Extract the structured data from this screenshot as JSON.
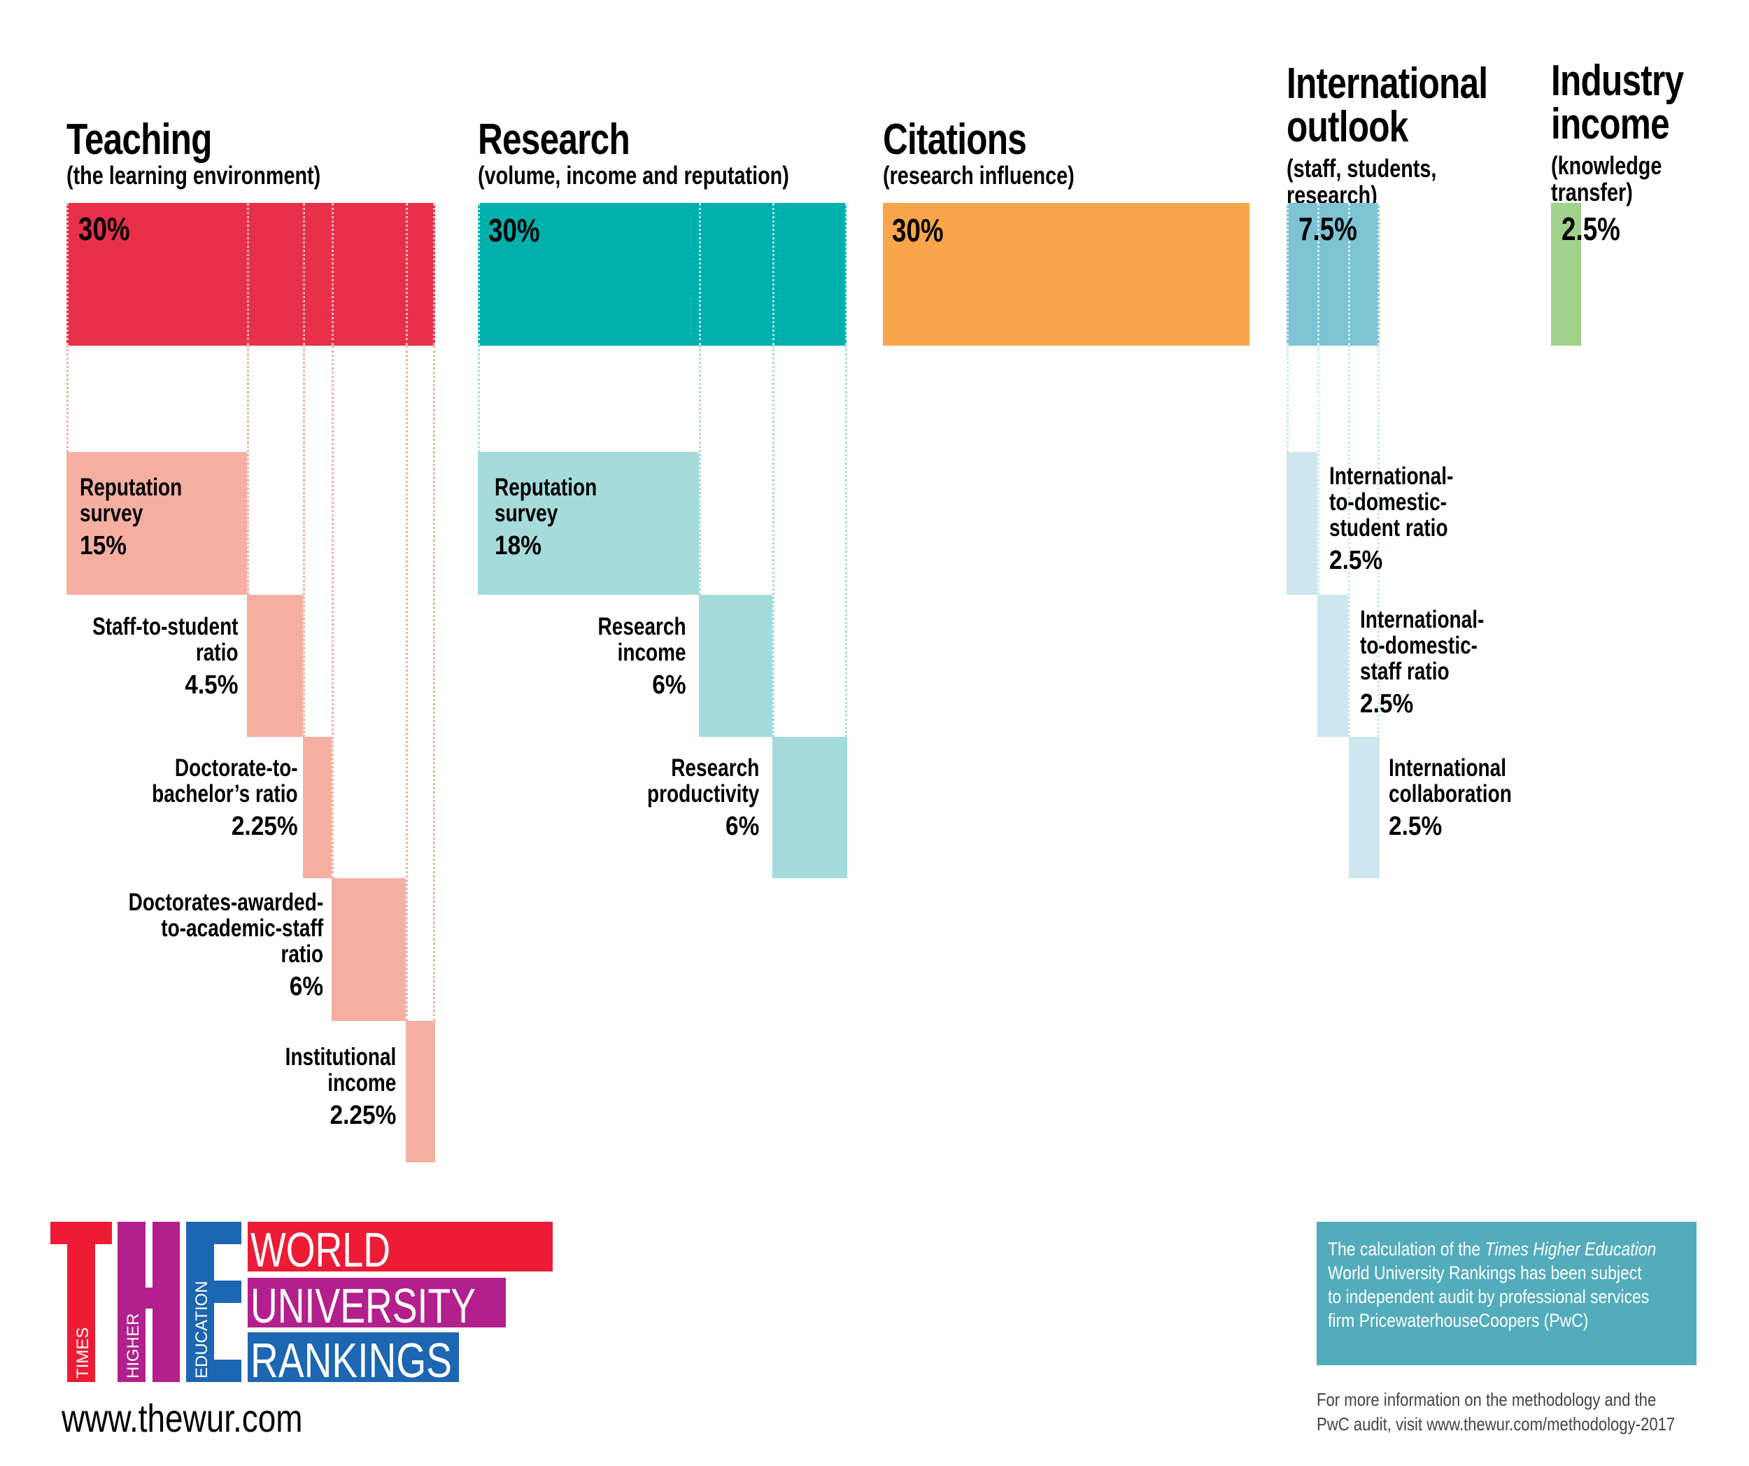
{
  "colors": {
    "teaching": "#e8304a",
    "teaching_light": "#f5afa1",
    "research": "#00b0ac",
    "research_light": "#a5dcdb",
    "citations": "#f9a64a",
    "international": "#7dc3d3",
    "international_light": "#cde7ee",
    "industry": "#a0d28b",
    "logo_red": "#ed1b35",
    "logo_magenta": "#b31f8c",
    "logo_blue": "#1c66b2",
    "note_box": "#53acbb"
  },
  "pillars": [
    {
      "title": "Teaching",
      "subtitle": "(the learning environment)",
      "weight": "30%",
      "value": 30,
      "indicators": [
        {
          "label_lines": [
            "Reputation",
            "survey"
          ],
          "weight": "15%",
          "value": 15
        },
        {
          "label_lines": [
            "Staff-to-student",
            "ratio"
          ],
          "weight": "4.5%",
          "value": 4.5
        },
        {
          "label_lines": [
            "Doctorate-to-",
            "bachelor’s ratio"
          ],
          "weight": "2.25%",
          "value": 2.25
        },
        {
          "label_lines": [
            "Doctorates-awarded-",
            "to-academic-staff",
            "ratio"
          ],
          "weight": "6%",
          "value": 6
        },
        {
          "label_lines": [
            "Institutional",
            "income"
          ],
          "weight": "2.25%",
          "value": 2.25
        }
      ]
    },
    {
      "title": "Research",
      "subtitle": "(volume, income and reputation)",
      "weight": "30%",
      "value": 30,
      "indicators": [
        {
          "label_lines": [
            "Reputation",
            "survey"
          ],
          "weight": "18%",
          "value": 18
        },
        {
          "label_lines": [
            "Research",
            "income"
          ],
          "weight": "6%",
          "value": 6
        },
        {
          "label_lines": [
            "Research",
            "productivity"
          ],
          "weight": "6%",
          "value": 6
        }
      ]
    },
    {
      "title": "Citations",
      "subtitle": "(research influence)",
      "weight": "30%",
      "value": 30,
      "indicators": []
    },
    {
      "title_lines": [
        "International",
        "outlook"
      ],
      "subtitle_lines": [
        "(staff, students,",
        "research)"
      ],
      "weight": "7.5%",
      "value": 7.5,
      "indicators": [
        {
          "label_lines": [
            "International-",
            "to-domestic-",
            "student ratio"
          ],
          "weight": "2.5%",
          "value": 2.5
        },
        {
          "label_lines": [
            "International-",
            "to-domestic-",
            "staff ratio"
          ],
          "weight": "2.5%",
          "value": 2.5
        },
        {
          "label_lines": [
            "International",
            "collaboration"
          ],
          "weight": "2.5%",
          "value": 2.5
        }
      ]
    },
    {
      "title_lines": [
        "Industry",
        "income"
      ],
      "subtitle_lines": [
        "(knowledge",
        "transfer)"
      ],
      "weight": "2.5%",
      "value": 2.5,
      "indicators": []
    }
  ],
  "logo": {
    "letters": [
      "T",
      "H",
      "E"
    ],
    "vertical_words": [
      "TIMES",
      "HIGHER",
      "EDUCATION"
    ],
    "bars": [
      "WORLD",
      "UNIVERSITY",
      "RANKINGS"
    ]
  },
  "website": "www.thewur.com",
  "note": {
    "line1_prefix": "The calculation of the ",
    "line1_italic": "Times Higher Education",
    "lines": [
      "World University Rankings has been subject",
      "to independent audit by professional services",
      "firm PricewaterhouseCoopers (PwC)"
    ]
  },
  "footer": {
    "lines": [
      "For more information on the methodology and the",
      "PwC audit, visit www.thewur.com/methodology-2017"
    ]
  }
}
